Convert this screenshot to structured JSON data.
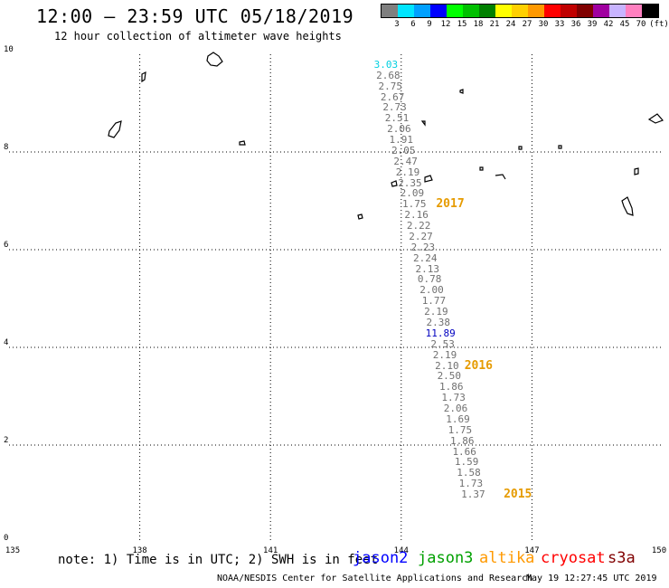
{
  "header": {
    "title": "12:00 – 23:59 UTC 05/18/2019",
    "subtitle": "12 hour collection of altimeter wave heights"
  },
  "color_scale": {
    "unit_label": "(ft)",
    "bins": [
      {
        "label": "3",
        "color": "#7f7f7f"
      },
      {
        "label": "6",
        "color": "#00e5ff"
      },
      {
        "label": "9",
        "color": "#00a0ff"
      },
      {
        "label": "12",
        "color": "#0000ff"
      },
      {
        "label": "15",
        "color": "#00ff00"
      },
      {
        "label": "18",
        "color": "#00c000"
      },
      {
        "label": "21",
        "color": "#008000"
      },
      {
        "label": "24",
        "color": "#ffff00"
      },
      {
        "label": "27",
        "color": "#ffd000"
      },
      {
        "label": "30",
        "color": "#ff9900"
      },
      {
        "label": "33",
        "color": "#ff0000"
      },
      {
        "label": "36",
        "color": "#c00000"
      },
      {
        "label": "39",
        "color": "#800000"
      },
      {
        "label": "42",
        "color": "#a000a0"
      },
      {
        "label": "45",
        "color": "#c8b4ff"
      },
      {
        "label": "70",
        "color": "#ff80c0"
      },
      {
        "label": "",
        "color": "#000000"
      }
    ]
  },
  "map": {
    "x_ticks": [
      "135",
      "138",
      "141",
      "144",
      "147",
      "150"
    ],
    "y_ticks": [
      "10",
      "8",
      "6",
      "4",
      "2",
      "0"
    ],
    "lon_range": [
      135,
      150
    ],
    "lat_range": [
      0,
      10
    ]
  },
  "track_points": [
    {
      "lon": 143.65,
      "lat": 9.78,
      "value": "3.03",
      "color": "#00d0e0"
    },
    {
      "lon": 143.7,
      "lat": 9.56,
      "value": "2.68",
      "color": "#707070"
    },
    {
      "lon": 143.75,
      "lat": 9.34,
      "value": "2.75",
      "color": "#707070"
    },
    {
      "lon": 143.8,
      "lat": 9.12,
      "value": "2.67",
      "color": "#707070"
    },
    {
      "lon": 143.85,
      "lat": 8.9,
      "value": "2.73",
      "color": "#707070"
    },
    {
      "lon": 143.9,
      "lat": 8.68,
      "value": "2.51",
      "color": "#707070"
    },
    {
      "lon": 143.95,
      "lat": 8.46,
      "value": "2.06",
      "color": "#707070"
    },
    {
      "lon": 144.0,
      "lat": 8.24,
      "value": "1.91",
      "color": "#707070"
    },
    {
      "lon": 144.05,
      "lat": 8.02,
      "value": "2.05",
      "color": "#707070"
    },
    {
      "lon": 144.1,
      "lat": 7.8,
      "value": "2.47",
      "color": "#707070"
    },
    {
      "lon": 144.15,
      "lat": 7.58,
      "value": "2.19",
      "color": "#707070"
    },
    {
      "lon": 144.2,
      "lat": 7.36,
      "value": "2.35",
      "color": "#707070"
    },
    {
      "lon": 144.25,
      "lat": 7.14,
      "value": "2.09",
      "color": "#707070"
    },
    {
      "lon": 144.3,
      "lat": 6.92,
      "value": "1.75",
      "color": "#707070"
    },
    {
      "lon": 144.35,
      "lat": 6.7,
      "value": "2.16",
      "color": "#707070"
    },
    {
      "lon": 144.4,
      "lat": 6.48,
      "value": "2.22",
      "color": "#707070"
    },
    {
      "lon": 144.45,
      "lat": 6.26,
      "value": "2.27",
      "color": "#707070"
    },
    {
      "lon": 144.5,
      "lat": 6.04,
      "value": "2.23",
      "color": "#707070"
    },
    {
      "lon": 144.55,
      "lat": 5.82,
      "value": "2.24",
      "color": "#707070"
    },
    {
      "lon": 144.6,
      "lat": 5.6,
      "value": "2.13",
      "color": "#707070"
    },
    {
      "lon": 144.65,
      "lat": 5.38,
      "value": "0.78",
      "color": "#707070"
    },
    {
      "lon": 144.7,
      "lat": 5.16,
      "value": "2.00",
      "color": "#707070"
    },
    {
      "lon": 144.75,
      "lat": 4.94,
      "value": "1.77",
      "color": "#707070"
    },
    {
      "lon": 144.8,
      "lat": 4.72,
      "value": "2.19",
      "color": "#707070"
    },
    {
      "lon": 144.85,
      "lat": 4.5,
      "value": "2.38",
      "color": "#707070"
    },
    {
      "lon": 144.9,
      "lat": 4.28,
      "value": "11.89",
      "color": "#0000c0"
    },
    {
      "lon": 144.95,
      "lat": 4.06,
      "value": "2.53",
      "color": "#707070"
    },
    {
      "lon": 145.0,
      "lat": 3.84,
      "value": "2.19",
      "color": "#707070"
    },
    {
      "lon": 145.05,
      "lat": 3.62,
      "value": "2.10",
      "color": "#707070"
    },
    {
      "lon": 145.1,
      "lat": 3.4,
      "value": "2.50",
      "color": "#707070"
    },
    {
      "lon": 145.15,
      "lat": 3.18,
      "value": "1.86",
      "color": "#707070"
    },
    {
      "lon": 145.2,
      "lat": 2.96,
      "value": "1.73",
      "color": "#707070"
    },
    {
      "lon": 145.25,
      "lat": 2.74,
      "value": "2.06",
      "color": "#707070"
    },
    {
      "lon": 145.3,
      "lat": 2.52,
      "value": "1.69",
      "color": "#707070"
    },
    {
      "lon": 145.35,
      "lat": 2.3,
      "value": "1.75",
      "color": "#707070"
    },
    {
      "lon": 145.4,
      "lat": 2.08,
      "value": "1.86",
      "color": "#707070"
    },
    {
      "lon": 145.45,
      "lat": 1.86,
      "value": "1.66",
      "color": "#707070"
    },
    {
      "lon": 145.5,
      "lat": 1.64,
      "value": "1.59",
      "color": "#707070"
    },
    {
      "lon": 145.55,
      "lat": 1.42,
      "value": "1.58",
      "color": "#707070"
    },
    {
      "lon": 145.6,
      "lat": 1.2,
      "value": "1.73",
      "color": "#707070"
    },
    {
      "lon": 145.65,
      "lat": 0.98,
      "value": "1.37",
      "color": "#707070"
    }
  ],
  "track_time_labels": [
    {
      "label": "2017",
      "lon": 144.8,
      "lat": 6.92
    },
    {
      "label": "2016",
      "lon": 145.45,
      "lat": 3.62
    },
    {
      "label": "2015",
      "lon": 146.35,
      "lat": 0.98
    }
  ],
  "footer": {
    "note": "note: 1) Time is in UTC; 2) SWH is in feet",
    "missions": [
      {
        "name": "jason2",
        "color": "#0000ff"
      },
      {
        "name": "jason3",
        "color": "#00a000"
      },
      {
        "name": "altika",
        "color": "#ff9900"
      },
      {
        "name": "cryosat",
        "color": "#ff0000"
      },
      {
        "name": "s3a",
        "color": "#800000"
      }
    ],
    "credit": "NOAA/NESDIS Center for Satellite Applications and Research",
    "timestamp": "May 19 12:27:45 UTC 2019"
  }
}
